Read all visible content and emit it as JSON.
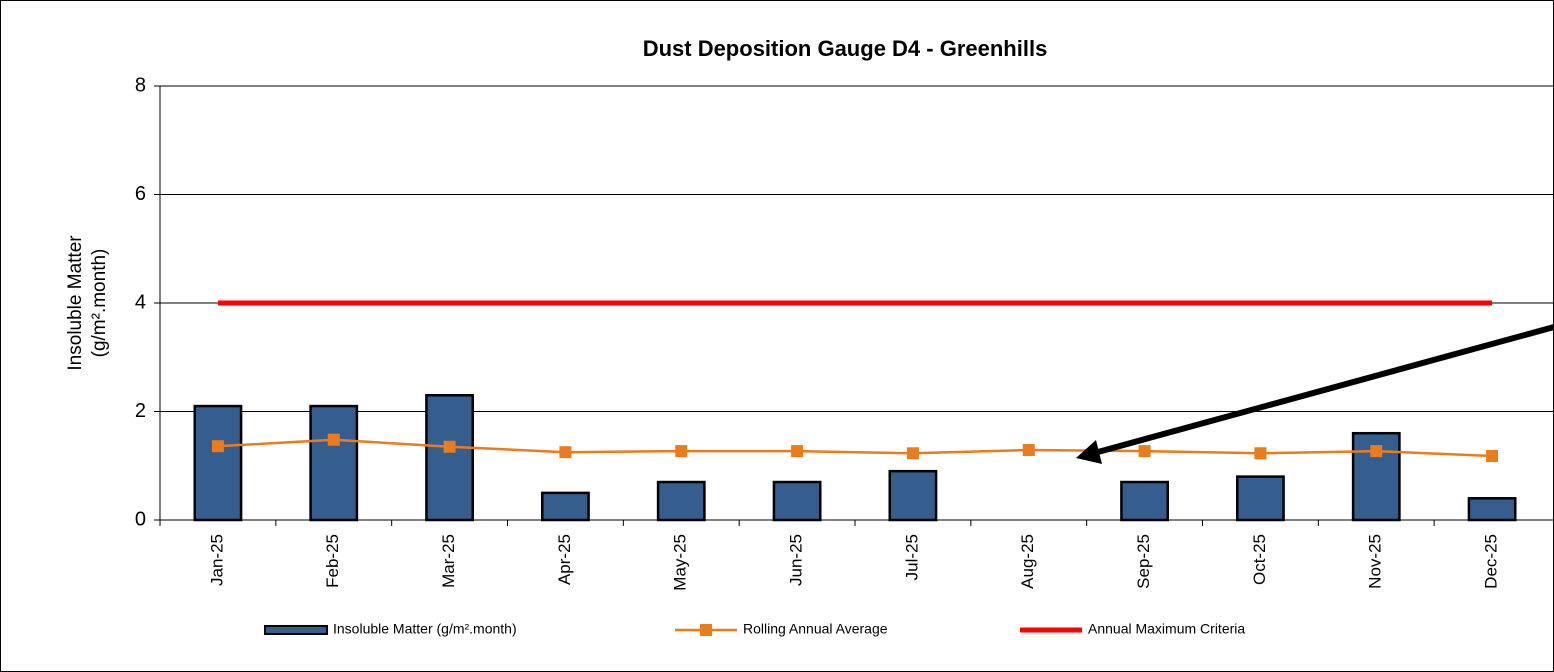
{
  "chart_data": {
    "type": "bar_line",
    "title": "Dust Deposition Gauge D4  - Greenhills",
    "y_label": [
      "Insoluble Matter",
      "(g/m².month)"
    ],
    "categories": [
      "Jan-25",
      "Feb-25",
      "Mar-25",
      "Apr-25",
      "May-25",
      "Jun-25",
      "Jul-25",
      "Aug-25",
      "Sep-25",
      "Oct-25",
      "Nov-25",
      "Dec-25"
    ],
    "series": [
      {
        "name": "Insoluble Matter (g/m².month)",
        "type": "bar",
        "color": "#355e8e",
        "values": [
          2.1,
          2.1,
          2.3,
          0.5,
          0.7,
          0.7,
          0.9,
          null,
          0.7,
          0.8,
          1.6,
          0.4
        ]
      },
      {
        "name": "Rolling Annual Average",
        "type": "line",
        "marker": "square",
        "color": "#e87c1e",
        "values": [
          1.36,
          1.48,
          1.35,
          1.25,
          1.27,
          1.27,
          1.23,
          1.29,
          1.27,
          1.23,
          1.27,
          1.18
        ]
      },
      {
        "name": "Annual Maximum Criteria",
        "type": "line",
        "color": "#ff0000",
        "values": [
          4,
          4,
          4,
          4,
          4,
          4,
          4,
          4,
          4,
          4,
          4,
          4
        ]
      }
    ],
    "ylim": [
      0,
      8
    ],
    "yticks": [
      0,
      2,
      4,
      6,
      8
    ],
    "grid": true,
    "legend": "bottom"
  }
}
